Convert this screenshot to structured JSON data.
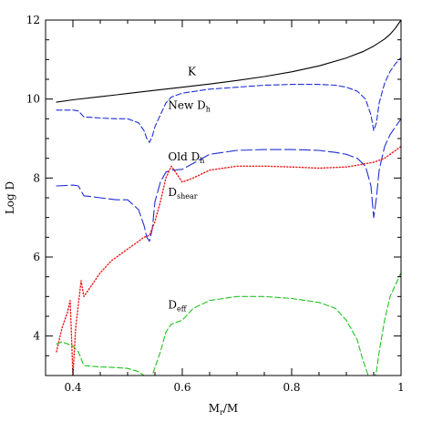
{
  "chart_data": {
    "type": "line",
    "title": "",
    "xlabel": "M_r/M",
    "xlabel_main": "M",
    "xlabel_sub": "r",
    "xlabel_tail": "/M",
    "ylabel": "Log D",
    "xlim": [
      0.35,
      1.0
    ],
    "ylim": [
      3,
      12
    ],
    "xticks": [
      0.4,
      0.6,
      0.8,
      1.0
    ],
    "xtick_labels": [
      "0.4",
      "0.6",
      "0.8",
      "1"
    ],
    "yticks": [
      4,
      6,
      8,
      10,
      12
    ],
    "ytick_labels": [
      "4",
      "6",
      "8",
      "10",
      "12"
    ],
    "grid": false,
    "series": [
      {
        "name": "K",
        "label_main": "K",
        "label_sub": "",
        "color": "#000000",
        "dash": "solid",
        "x": [
          0.37,
          0.4,
          0.45,
          0.5,
          0.55,
          0.6,
          0.65,
          0.7,
          0.75,
          0.8,
          0.85,
          0.9,
          0.93,
          0.95,
          0.97,
          0.98,
          0.99,
          1.0
        ],
        "y": [
          9.92,
          9.98,
          10.06,
          10.14,
          10.22,
          10.3,
          10.38,
          10.47,
          10.57,
          10.69,
          10.84,
          11.04,
          11.2,
          11.34,
          11.52,
          11.64,
          11.8,
          12.0
        ]
      },
      {
        "name": "New D_h",
        "label_main": "New D",
        "label_sub": "h",
        "color": "#1f2fd6",
        "dash": "short",
        "x": [
          0.37,
          0.4,
          0.41,
          0.42,
          0.45,
          0.48,
          0.5,
          0.52,
          0.53,
          0.535,
          0.54,
          0.545,
          0.55,
          0.56,
          0.57,
          0.58,
          0.6,
          0.65,
          0.7,
          0.75,
          0.8,
          0.85,
          0.88,
          0.9,
          0.92,
          0.935,
          0.945,
          0.95,
          0.955,
          0.96,
          0.97,
          0.98,
          0.99,
          1.0
        ],
        "y": [
          9.72,
          9.72,
          9.7,
          9.55,
          9.52,
          9.5,
          9.5,
          9.4,
          9.2,
          9.0,
          8.9,
          9.05,
          9.3,
          9.6,
          9.9,
          10.05,
          10.15,
          10.25,
          10.3,
          10.35,
          10.37,
          10.37,
          10.35,
          10.3,
          10.2,
          10.0,
          9.6,
          9.2,
          9.4,
          9.9,
          10.4,
          10.7,
          10.9,
          11.05
        ]
      },
      {
        "name": "Old D_h",
        "label_main": "Old D",
        "label_sub": "h",
        "color": "#1f2fd6",
        "dash": "long",
        "x": [
          0.37,
          0.4,
          0.41,
          0.42,
          0.45,
          0.48,
          0.5,
          0.52,
          0.53,
          0.535,
          0.54,
          0.545,
          0.55,
          0.56,
          0.57,
          0.58,
          0.6,
          0.65,
          0.7,
          0.75,
          0.8,
          0.85,
          0.88,
          0.9,
          0.92,
          0.935,
          0.945,
          0.95,
          0.955,
          0.96,
          0.97,
          0.98,
          0.99,
          1.0
        ],
        "y": [
          7.8,
          7.82,
          7.8,
          7.55,
          7.5,
          7.45,
          7.45,
          7.2,
          6.8,
          6.5,
          6.4,
          6.7,
          7.4,
          7.9,
          8.15,
          8.2,
          8.22,
          8.6,
          8.7,
          8.72,
          8.72,
          8.7,
          8.65,
          8.6,
          8.5,
          8.3,
          7.8,
          7.0,
          7.5,
          8.2,
          8.8,
          9.1,
          9.3,
          9.5
        ]
      },
      {
        "name": "D_shear",
        "label_main": "D",
        "label_sub": "shear",
        "color": "#e81c1c",
        "dash": "dotted",
        "x": [
          0.37,
          0.38,
          0.39,
          0.395,
          0.4,
          0.405,
          0.41,
          0.415,
          0.42,
          0.43,
          0.45,
          0.47,
          0.5,
          0.52,
          0.53,
          0.54,
          0.55,
          0.56,
          0.57,
          0.58,
          0.6,
          0.62,
          0.65,
          0.7,
          0.75,
          0.8,
          0.85,
          0.9,
          0.93,
          0.95,
          0.97,
          0.98,
          0.99,
          1.0
        ],
        "y": [
          3.6,
          4.2,
          4.6,
          4.9,
          3.0,
          4.2,
          4.8,
          5.4,
          5.0,
          5.2,
          5.6,
          5.9,
          6.2,
          6.4,
          6.5,
          6.55,
          6.9,
          7.4,
          8.0,
          8.3,
          7.9,
          8.0,
          8.2,
          8.3,
          8.3,
          8.28,
          8.25,
          8.28,
          8.35,
          8.4,
          8.5,
          8.6,
          8.7,
          8.8
        ]
      },
      {
        "name": "D_eff",
        "label_main": "D",
        "label_sub": "eff",
        "color": "#22c422",
        "dash": "short",
        "x": [
          0.37,
          0.38,
          0.39,
          0.4,
          0.41,
          0.42,
          0.45,
          0.48,
          0.5,
          0.52,
          0.53,
          0.535,
          0.54,
          0.55,
          0.56,
          0.57,
          0.58,
          0.6,
          0.62,
          0.65,
          0.7,
          0.75,
          0.8,
          0.85,
          0.88,
          0.9,
          0.92,
          0.93,
          0.94,
          0.945,
          0.95,
          0.955,
          0.96,
          0.97,
          0.98,
          0.99,
          1.0
        ],
        "y": [
          3.8,
          3.85,
          3.8,
          3.75,
          3.6,
          3.25,
          3.22,
          3.2,
          3.18,
          3.1,
          3.0,
          2.9,
          2.8,
          3.2,
          3.6,
          4.1,
          4.3,
          4.4,
          4.7,
          4.9,
          5.0,
          5.0,
          4.95,
          4.85,
          4.7,
          4.4,
          3.9,
          3.4,
          3.0,
          2.9,
          2.85,
          3.1,
          3.6,
          4.4,
          5.0,
          5.3,
          5.6
        ]
      }
    ],
    "annotations": [
      {
        "series": "K",
        "main": "K",
        "sub": "",
        "x": 0.61,
        "y": 10.6
      },
      {
        "series": "New D_h",
        "main": "New D",
        "sub": "h",
        "x": 0.574,
        "y": 9.75
      },
      {
        "series": "Old D_h",
        "main": "Old D",
        "sub": "h",
        "x": 0.574,
        "y": 8.45
      },
      {
        "series": "D_shear",
        "main": "D",
        "sub": "shear",
        "x": 0.574,
        "y": 7.55
      },
      {
        "series": "D_eff",
        "main": "D",
        "sub": "eff",
        "x": 0.574,
        "y": 4.7
      }
    ]
  }
}
